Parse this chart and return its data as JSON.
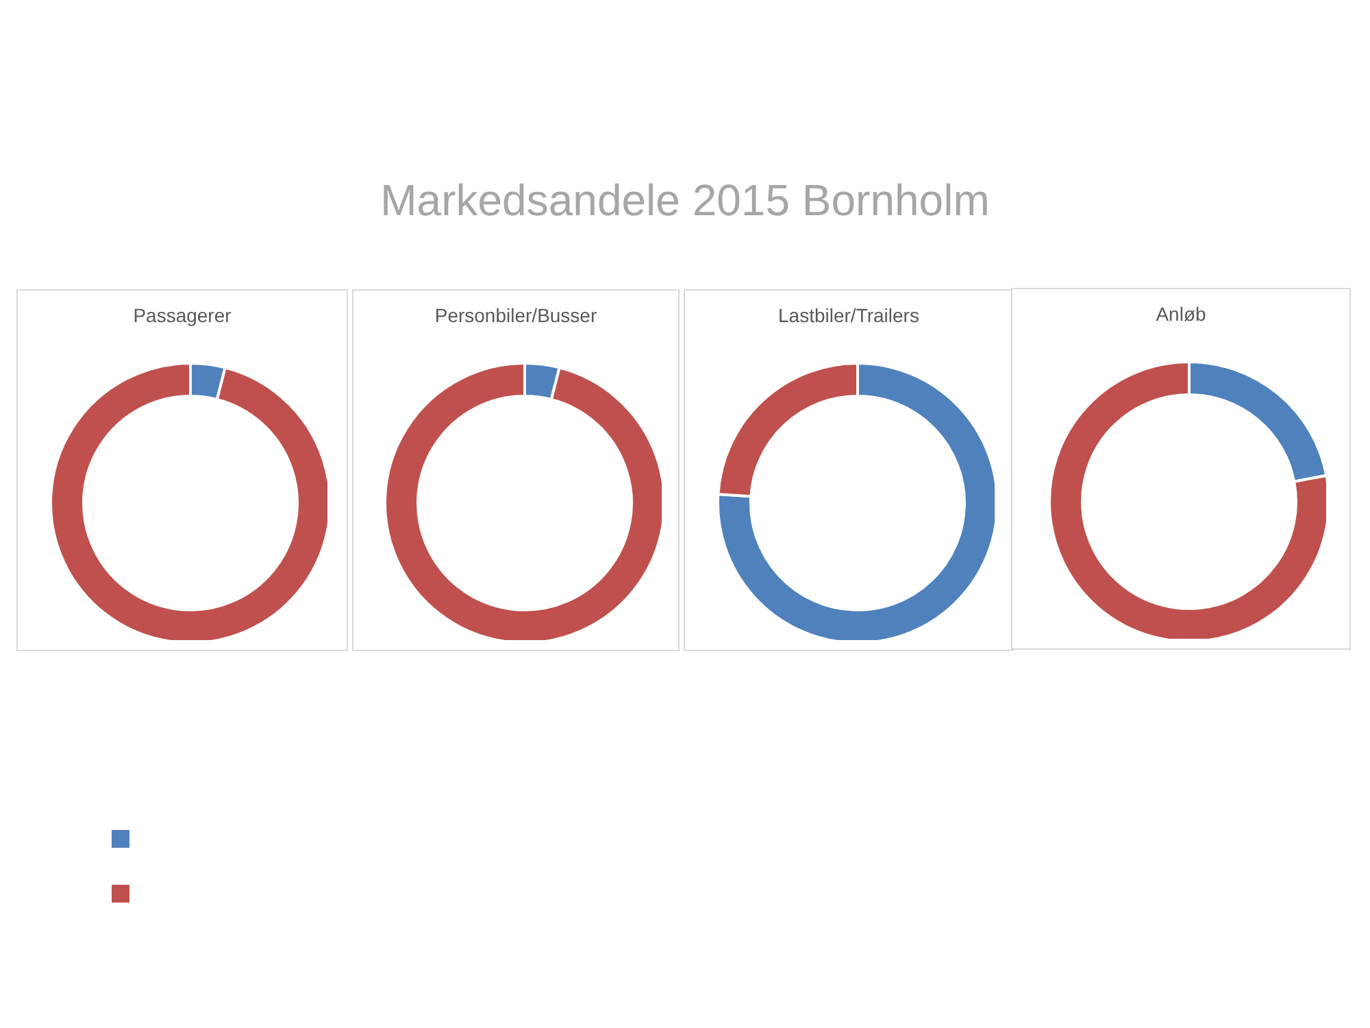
{
  "chart_data": [
    {
      "type": "other",
      "title": "Markedsandele 2015 Bornholm"
    },
    {
      "type": "donut",
      "title": "Passagerer",
      "categories": [
        null,
        null
      ],
      "values": [
        4,
        96
      ],
      "colors": [
        "#4f81bd",
        "#c0504d"
      ]
    },
    {
      "type": "donut",
      "title": "Personbiler/Busser",
      "categories": [
        null,
        null
      ],
      "values": [
        4,
        96
      ],
      "colors": [
        "#4f81bd",
        "#c0504d"
      ]
    },
    {
      "type": "donut",
      "title": "Lastbiler/Trailers",
      "categories": [
        null,
        null
      ],
      "values": [
        76,
        24
      ],
      "colors": [
        "#4f81bd",
        "#c0504d"
      ]
    },
    {
      "type": "donut",
      "title": "Anløb",
      "categories": [
        null,
        null
      ],
      "values": [
        22,
        78
      ],
      "colors": [
        "#4f81bd",
        "#c0504d"
      ]
    }
  ]
}
